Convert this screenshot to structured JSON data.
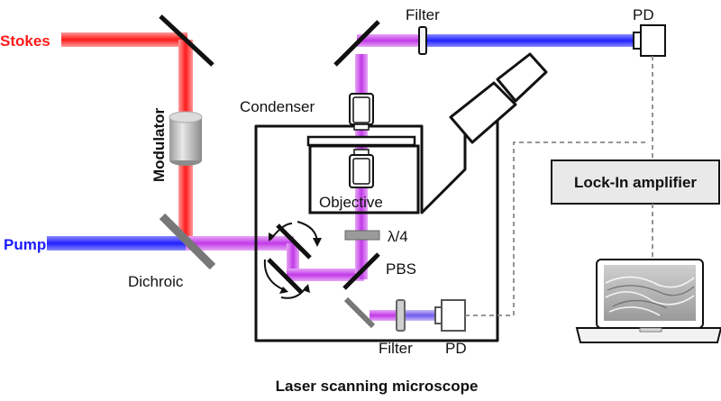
{
  "labels": {
    "stokes": "Stokes",
    "pump": "Pump",
    "modulator": "Modulator",
    "dichroic": "Dichroic",
    "filter_top": "Filter",
    "pd_top": "PD",
    "condenser": "Condenser",
    "objective": "Objective",
    "quarter_wave": "λ/4",
    "pbs": "PBS",
    "filter_bottom": "Filter",
    "pd_bottom": "PD",
    "lock_in": "Lock-In amplifier",
    "microscope": "Laser scanning microscope"
  },
  "colors": {
    "stokes_beam": "#ff2a2a",
    "pump_beam": "#2424ff",
    "combined_beam": "#cc44ee",
    "stokes_text": "#ff1a1a",
    "pump_text": "#1a1aff",
    "mirror": "#111111",
    "dichroic_mirror": "#777777"
  }
}
